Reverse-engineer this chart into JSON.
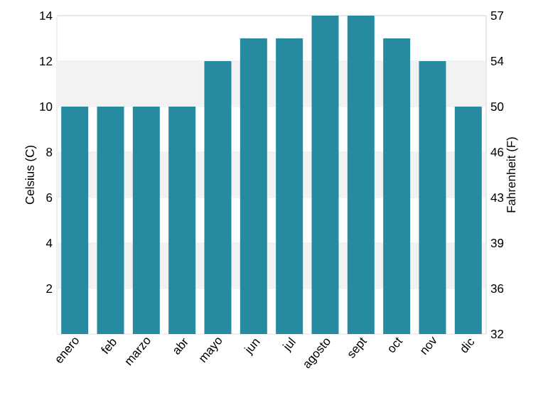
{
  "chart_data": {
    "type": "bar",
    "categories": [
      "enero",
      "feb",
      "marzo",
      "abr",
      "mayo",
      "jun",
      "jul",
      "agosto",
      "sept",
      "oct",
      "nov",
      "dic"
    ],
    "values": [
      10,
      10,
      10,
      10,
      12,
      13,
      13,
      14,
      14,
      13,
      12,
      10
    ],
    "color": "#268ba0",
    "ylabel": "Celsius (C)",
    "y2label": "Fahrenheit (F)",
    "ylim": [
      0,
      14
    ],
    "yticks": [
      2,
      4,
      6,
      8,
      10,
      12,
      14
    ],
    "y2lim": [
      32,
      57.2
    ],
    "y2ticks": [
      {
        "value": 32,
        "label": "32"
      },
      {
        "value": 35.6,
        "label": "36"
      },
      {
        "value": 39.2,
        "label": "39"
      },
      {
        "value": 42.8,
        "label": "43"
      },
      {
        "value": 46.4,
        "label": "46"
      },
      {
        "value": 50,
        "label": "50"
      },
      {
        "value": 53.6,
        "label": "54"
      },
      {
        "value": 57.2,
        "label": "57"
      }
    ],
    "bands": [
      {
        "axis": "y",
        "from": 2,
        "to": 4,
        "color": "#f2f2f2"
      },
      {
        "axis": "y",
        "from": 6,
        "to": 8,
        "color": "#f2f2f2"
      },
      {
        "axis": "y",
        "from": 10,
        "to": 12,
        "color": "#f2f2f2"
      }
    ],
    "grid": "y"
  }
}
